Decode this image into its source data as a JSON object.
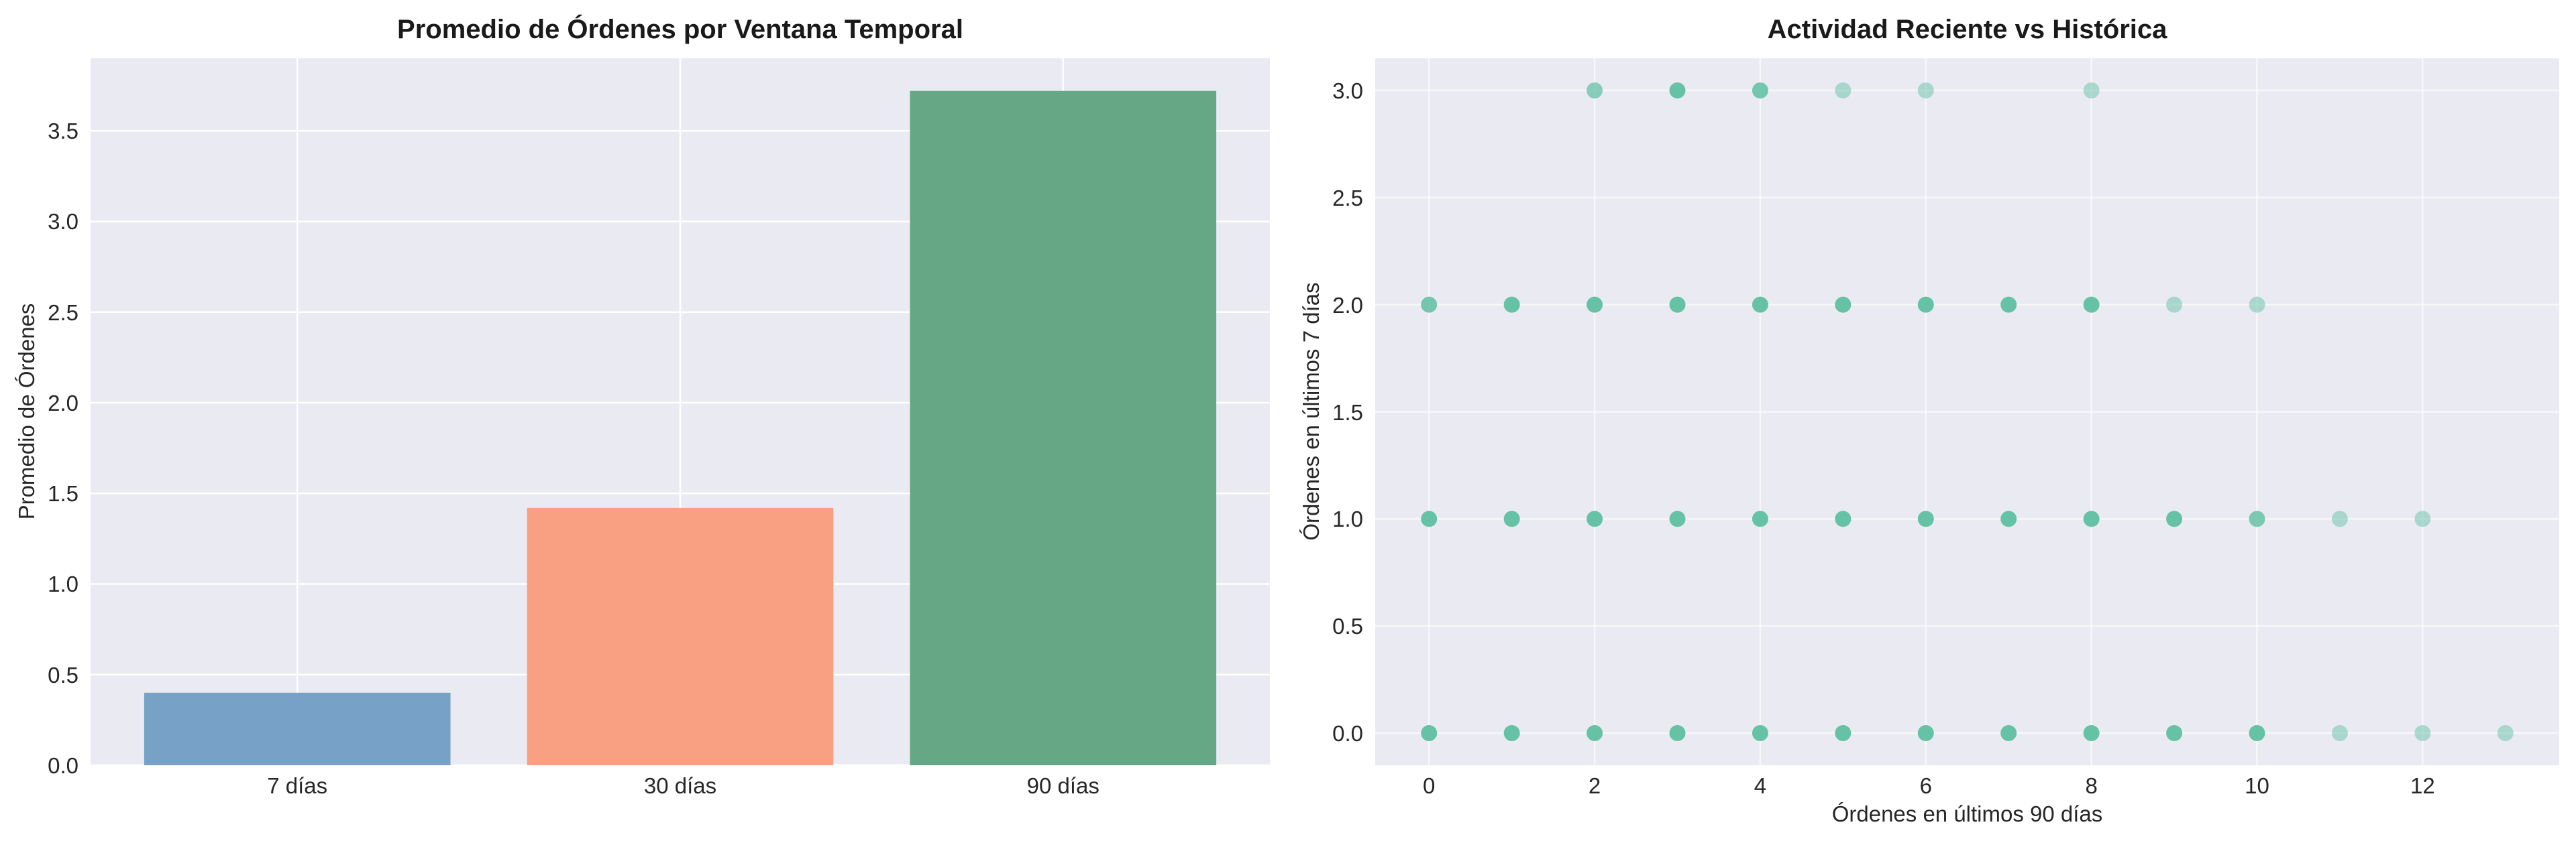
{
  "chart_data": [
    {
      "type": "bar",
      "title": "Promedio de Órdenes por Ventana Temporal",
      "xlabel": "",
      "ylabel": "Promedio de Órdenes",
      "categories": [
        "7 días",
        "30 días",
        "90 días"
      ],
      "values": [
        0.4,
        1.42,
        3.72
      ],
      "colors": [
        "#77a1c7",
        "#f8a081",
        "#66a885"
      ],
      "ylim": [
        0,
        3.9
      ],
      "yticks": [
        "0.0",
        "0.5",
        "1.0",
        "1.5",
        "2.0",
        "2.5",
        "3.0",
        "3.5"
      ],
      "grid": true,
      "legend": null
    },
    {
      "type": "scatter",
      "title": "Actividad Reciente vs Histórica",
      "xlabel": "Órdenes en últimos 90 días",
      "ylabel": "Órdenes en últimos 7 días",
      "xlim": [
        -0.65,
        13.65
      ],
      "ylim": [
        -0.15,
        3.15
      ],
      "xticks": [
        "0",
        "2",
        "4",
        "6",
        "8",
        "10",
        "12"
      ],
      "yticks": [
        "0.0",
        "0.5",
        "1.0",
        "1.5",
        "2.0",
        "2.5",
        "3.0"
      ],
      "color": "#66c2a5",
      "grid": true,
      "legend": null,
      "points": [
        {
          "x": 2,
          "y": 3,
          "alpha": 0.75
        },
        {
          "x": 3,
          "y": 3,
          "alpha": 1.0
        },
        {
          "x": 4,
          "y": 3,
          "alpha": 0.9
        },
        {
          "x": 5,
          "y": 3,
          "alpha": 0.5
        },
        {
          "x": 6,
          "y": 3,
          "alpha": 0.5
        },
        {
          "x": 8,
          "y": 3,
          "alpha": 0.5
        },
        {
          "x": 0,
          "y": 2,
          "alpha": 0.9
        },
        {
          "x": 1,
          "y": 2,
          "alpha": 1.0
        },
        {
          "x": 2,
          "y": 2,
          "alpha": 1.0
        },
        {
          "x": 3,
          "y": 2,
          "alpha": 1.0
        },
        {
          "x": 4,
          "y": 2,
          "alpha": 1.0
        },
        {
          "x": 5,
          "y": 2,
          "alpha": 1.0
        },
        {
          "x": 6,
          "y": 2,
          "alpha": 1.0
        },
        {
          "x": 7,
          "y": 2,
          "alpha": 1.0
        },
        {
          "x": 8,
          "y": 2,
          "alpha": 1.0
        },
        {
          "x": 9,
          "y": 2,
          "alpha": 0.5
        },
        {
          "x": 10,
          "y": 2,
          "alpha": 0.5
        },
        {
          "x": 0,
          "y": 1,
          "alpha": 1.0
        },
        {
          "x": 1,
          "y": 1,
          "alpha": 1.0
        },
        {
          "x": 2,
          "y": 1,
          "alpha": 1.0
        },
        {
          "x": 3,
          "y": 1,
          "alpha": 1.0
        },
        {
          "x": 4,
          "y": 1,
          "alpha": 1.0
        },
        {
          "x": 5,
          "y": 1,
          "alpha": 1.0
        },
        {
          "x": 6,
          "y": 1,
          "alpha": 1.0
        },
        {
          "x": 7,
          "y": 1,
          "alpha": 1.0
        },
        {
          "x": 8,
          "y": 1,
          "alpha": 1.0
        },
        {
          "x": 9,
          "y": 1,
          "alpha": 1.0
        },
        {
          "x": 10,
          "y": 1,
          "alpha": 0.85
        },
        {
          "x": 11,
          "y": 1,
          "alpha": 0.5
        },
        {
          "x": 12,
          "y": 1,
          "alpha": 0.5
        },
        {
          "x": 0,
          "y": 0,
          "alpha": 1.0
        },
        {
          "x": 1,
          "y": 0,
          "alpha": 1.0
        },
        {
          "x": 2,
          "y": 0,
          "alpha": 1.0
        },
        {
          "x": 3,
          "y": 0,
          "alpha": 1.0
        },
        {
          "x": 4,
          "y": 0,
          "alpha": 1.0
        },
        {
          "x": 5,
          "y": 0,
          "alpha": 1.0
        },
        {
          "x": 6,
          "y": 0,
          "alpha": 1.0
        },
        {
          "x": 7,
          "y": 0,
          "alpha": 1.0
        },
        {
          "x": 8,
          "y": 0,
          "alpha": 1.0
        },
        {
          "x": 9,
          "y": 0,
          "alpha": 1.0
        },
        {
          "x": 10,
          "y": 0,
          "alpha": 1.0
        },
        {
          "x": 11,
          "y": 0,
          "alpha": 0.5
        },
        {
          "x": 12,
          "y": 0,
          "alpha": 0.5
        },
        {
          "x": 13,
          "y": 0,
          "alpha": 0.5
        }
      ]
    }
  ]
}
